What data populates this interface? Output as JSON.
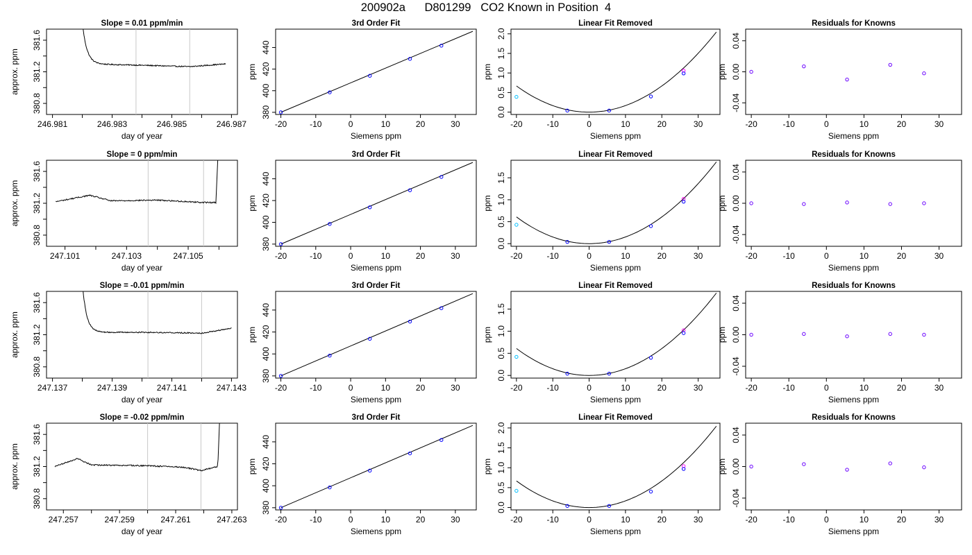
{
  "figure": {
    "title": "200902a      D801299   CO2 Known in Position  4"
  },
  "chart_data": [
    {
      "type": "line",
      "title": "Slope =  0.01  ppm/min",
      "xlabel": "day of year",
      "ylabel": "approx. ppm",
      "xlim": [
        246.9808,
        246.9872
      ],
      "ylim": [
        380.66,
        381.74
      ],
      "xticks": [
        "246.981",
        "246.983",
        "246.985",
        "246.987"
      ],
      "xticks_minor": [
        246.982,
        246.984,
        246.986
      ],
      "yticks": [
        "380.8",
        "381.2",
        "381.6"
      ],
      "ymin_ticks": [
        381.0,
        381.4
      ],
      "vlines": [
        246.9838,
        246.9856
      ],
      "vline_color": "#c8c8c8",
      "line_color": "#000000",
      "series": [
        {
          "x_start": 246.982,
          "x_end": 246.9868,
          "y_start": 381.83,
          "level": 381.3,
          "decay": 0.00015,
          "noise": 0.007,
          "segments": [
            [
              246.9838,
              381.285
            ],
            [
              246.9856,
              381.265
            ],
            [
              246.9868,
              381.3
            ]
          ]
        }
      ]
    },
    {
      "type": "scatter",
      "title": "3rd Order Fit",
      "xlabel": "Siemens ppm",
      "ylabel": "ppm",
      "xlim": [
        -21.5,
        36
      ],
      "ylim": [
        378,
        457
      ],
      "xticks": [
        "-20",
        "-10",
        "0",
        "10",
        "20",
        "30"
      ],
      "yticks": [
        "380",
        "400",
        "420",
        "440"
      ],
      "line": {
        "x": [
          -20,
          35
        ],
        "y": [
          380,
          455
        ]
      },
      "point_color": "#0000ff",
      "points": {
        "x": [
          -20,
          -6,
          5.5,
          17,
          26
        ],
        "y": [
          380,
          398.5,
          413.8,
          429.5,
          441.7
        ]
      }
    },
    {
      "type": "scatter",
      "title": "Linear Fit Removed",
      "xlabel": "Siemens ppm",
      "ylabel": "ppm",
      "xlim": [
        -21.5,
        36
      ],
      "ylim": [
        -0.06,
        2.12
      ],
      "xticks": [
        "-20",
        "-10",
        "0",
        "10",
        "20",
        "30"
      ],
      "yticks": [
        "0.0",
        "0.5",
        "1.0",
        "1.5",
        "2.0"
      ],
      "curve": {
        "coef": 0.00167,
        "x_from": -20,
        "x_to": 35
      },
      "points": {
        "x": [
          -20,
          -6,
          5.5,
          17,
          26
        ],
        "y": [
          0.39,
          0.04,
          0.04,
          0.4,
          1.06
        ]
      },
      "point_colors": [
        "#00bfff",
        "#0000ff",
        "#0000ff",
        "#0000ff",
        "#ff00ff"
      ]
    },
    {
      "type": "scatter",
      "title": "Residuals for Knowns",
      "xlabel": "Siemens ppm",
      "ylabel": "ppm",
      "xlim": [
        -21.5,
        36
      ],
      "ylim": [
        -0.055,
        0.055
      ],
      "xticks": [
        "-20",
        "-10",
        "0",
        "10",
        "20",
        "30"
      ],
      "yticks": [
        "-0.04",
        "0.00",
        "0.04"
      ],
      "points": {
        "x": [
          -20,
          -6,
          5.5,
          17,
          26
        ],
        "y": [
          0.0,
          0.007,
          -0.01,
          0.009,
          -0.002
        ]
      },
      "point_color": "#6a00ff"
    },
    {
      "type": "line",
      "title": "Slope =  0  ppm/min",
      "xlabel": "day of year",
      "ylabel": "approx. ppm",
      "xlim": [
        247.1004,
        247.1066
      ],
      "ylim": [
        380.66,
        381.74
      ],
      "xticks": [
        "247.101",
        "247.103",
        "247.105"
      ],
      "xticks_minor": [
        247.102,
        247.104,
        247.106
      ],
      "yticks": [
        "380.8",
        "381.2",
        "381.6"
      ],
      "ymin_ticks": [
        381.0,
        381.4
      ],
      "vlines": [
        247.1037,
        247.1055
      ],
      "vline_color": "#c8c8c8",
      "line_color": "#000000",
      "series": [
        {
          "x_start": 247.1007,
          "x_end": 247.106,
          "y_start": 381.3,
          "level": 381.22,
          "rise_at": 247.1059,
          "noise": 0.008,
          "segments": [
            [
              247.1018,
              381.3
            ],
            [
              247.1025,
              381.23
            ],
            [
              247.104,
              381.24
            ],
            [
              247.1055,
              381.21
            ]
          ]
        }
      ]
    },
    {
      "type": "scatter",
      "title": "3rd Order Fit",
      "xlabel": "Siemens ppm",
      "ylabel": "ppm",
      "xlim": [
        -21.5,
        36
      ],
      "ylim": [
        378,
        457
      ],
      "xticks": [
        "-20",
        "-10",
        "0",
        "10",
        "20",
        "30"
      ],
      "yticks": [
        "380",
        "400",
        "420",
        "440"
      ],
      "line": {
        "x": [
          -20,
          35
        ],
        "y": [
          380,
          455
        ]
      },
      "point_color": "#0000ff",
      "points": {
        "x": [
          -20,
          -6,
          5.5,
          17,
          26
        ],
        "y": [
          380,
          398.5,
          413.8,
          429.5,
          441.7
        ]
      }
    },
    {
      "type": "scatter",
      "title": "Linear Fit Removed",
      "xlabel": "Siemens ppm",
      "ylabel": "ppm",
      "xlim": [
        -21.5,
        36
      ],
      "ylim": [
        -0.06,
        1.9
      ],
      "xticks": [
        "-20",
        "-10",
        "0",
        "10",
        "20",
        "30"
      ],
      "yticks": [
        "0.0",
        "0.5",
        "1.0",
        "1.5"
      ],
      "curve": {
        "coef": 0.00152,
        "x_from": -20,
        "x_to": 35
      },
      "points": {
        "x": [
          -20,
          -6,
          5.5,
          17,
          26
        ],
        "y": [
          0.43,
          0.04,
          0.04,
          0.4,
          1.02
        ]
      },
      "point_colors": [
        "#00bfff",
        "#0000ff",
        "#0000ff",
        "#0000ff",
        "#ff00ff"
      ]
    },
    {
      "type": "scatter",
      "title": "Residuals for Knowns",
      "xlabel": "Siemens ppm",
      "ylabel": "ppm",
      "xlim": [
        -21.5,
        36
      ],
      "ylim": [
        -0.055,
        0.055
      ],
      "xticks": [
        "-20",
        "-10",
        "0",
        "10",
        "20",
        "30"
      ],
      "yticks": [
        "-0.04",
        "0.00",
        "0.04"
      ],
      "points": {
        "x": [
          -20,
          -6,
          5.5,
          17,
          26
        ],
        "y": [
          0.0,
          -0.001,
          0.001,
          -0.001,
          0.0
        ]
      },
      "point_color": "#6a00ff"
    },
    {
      "type": "line",
      "title": "Slope =  -0.01  ppm/min",
      "xlabel": "day of year",
      "ylabel": "approx. ppm",
      "xlim": [
        247.1368,
        247.1432
      ],
      "ylim": [
        380.66,
        381.74
      ],
      "xticks": [
        "247.137",
        "247.139",
        "247.141",
        "247.143"
      ],
      "xticks_minor": [
        247.138,
        247.14,
        247.142
      ],
      "yticks": [
        "380.8",
        "381.2",
        "381.6"
      ],
      "ymin_ticks": [
        381.0,
        381.4
      ],
      "vlines": [
        247.1402,
        247.142
      ],
      "vline_color": "#c8c8c8",
      "line_color": "#000000",
      "series": [
        {
          "x_start": 247.138,
          "x_end": 247.143,
          "y_start": 381.85,
          "level": 381.23,
          "decay": 0.00014,
          "noise": 0.007,
          "segments": [
            [
              247.1402,
              381.23
            ],
            [
              247.142,
              381.22
            ],
            [
              247.143,
              381.28
            ]
          ]
        }
      ]
    },
    {
      "type": "scatter",
      "title": "3rd Order Fit",
      "xlabel": "Siemens ppm",
      "ylabel": "ppm",
      "xlim": [
        -21.5,
        36
      ],
      "ylim": [
        378,
        457
      ],
      "xticks": [
        "-20",
        "-10",
        "0",
        "10",
        "20",
        "30"
      ],
      "yticks": [
        "380",
        "400",
        "420",
        "440"
      ],
      "line": {
        "x": [
          -20,
          35
        ],
        "y": [
          380,
          455
        ]
      },
      "point_color": "#0000ff",
      "points": {
        "x": [
          -20,
          -6,
          5.5,
          17,
          26
        ],
        "y": [
          380,
          398.5,
          413.8,
          429.5,
          441.7
        ]
      }
    },
    {
      "type": "scatter",
      "title": "Linear Fit Removed",
      "xlabel": "Siemens ppm",
      "ylabel": "ppm",
      "xlim": [
        -21.5,
        36
      ],
      "ylim": [
        -0.06,
        1.9
      ],
      "xticks": [
        "-20",
        "-10",
        "0",
        "10",
        "20",
        "30"
      ],
      "yticks": [
        "0.0",
        "0.5",
        "1.0",
        "1.5"
      ],
      "curve": {
        "coef": 0.00152,
        "x_from": -20,
        "x_to": 35
      },
      "points": {
        "x": [
          -20,
          -6,
          5.5,
          17,
          26
        ],
        "y": [
          0.42,
          0.04,
          0.04,
          0.4,
          1.02
        ]
      },
      "point_colors": [
        "#00bfff",
        "#0000ff",
        "#0000ff",
        "#0000ff",
        "#ff00ff"
      ]
    },
    {
      "type": "scatter",
      "title": "Residuals for Knowns",
      "xlabel": "Siemens ppm",
      "ylabel": "ppm",
      "xlim": [
        -21.5,
        36
      ],
      "ylim": [
        -0.055,
        0.055
      ],
      "xticks": [
        "-20",
        "-10",
        "0",
        "10",
        "20",
        "30"
      ],
      "yticks": [
        "-0.04",
        "0.00",
        "0.04"
      ],
      "points": {
        "x": [
          -20,
          -6,
          5.5,
          17,
          26
        ],
        "y": [
          0.0,
          0.001,
          -0.002,
          0.001,
          0.0
        ]
      },
      "point_color": "#6a00ff"
    },
    {
      "type": "line",
      "title": "Slope =  -0.02  ppm/min",
      "xlabel": "day of year",
      "ylabel": "approx. ppm",
      "xlim": [
        247.2564,
        247.2632
      ],
      "ylim": [
        380.66,
        381.74
      ],
      "xticks": [
        "247.257",
        "247.259",
        "247.261",
        "247.263"
      ],
      "xticks_minor": [
        247.258,
        247.26,
        247.262
      ],
      "yticks": [
        "380.8",
        "381.2",
        "381.6"
      ],
      "ymin_ticks": [
        381.0,
        381.4
      ],
      "vlines": [
        247.26,
        247.2619
      ],
      "vline_color": "#c8c8c8",
      "line_color": "#000000",
      "series": [
        {
          "x_start": 247.2567,
          "x_end": 247.2626,
          "y_start": 381.28,
          "level": 381.2,
          "rise_at": 247.2625,
          "noise": 0.008,
          "segments": [
            [
              247.2575,
              381.3
            ],
            [
              247.258,
              381.22
            ],
            [
              247.26,
              381.21
            ],
            [
              247.2613,
              381.19
            ],
            [
              247.2619,
              381.15
            ],
            [
              247.2625,
              381.2
            ]
          ]
        }
      ]
    },
    {
      "type": "scatter",
      "title": "3rd Order Fit",
      "xlabel": "Siemens ppm",
      "ylabel": "ppm",
      "xlim": [
        -21.5,
        36
      ],
      "ylim": [
        378,
        457
      ],
      "xticks": [
        "-20",
        "-10",
        "0",
        "10",
        "20",
        "30"
      ],
      "yticks": [
        "380",
        "400",
        "420",
        "440"
      ],
      "line": {
        "x": [
          -20,
          35
        ],
        "y": [
          380,
          455
        ]
      },
      "point_color": "#0000ff",
      "points": {
        "x": [
          -20,
          -6,
          5.5,
          17,
          26
        ],
        "y": [
          380,
          398.5,
          413.8,
          429.5,
          441.7
        ]
      }
    },
    {
      "type": "scatter",
      "title": "Linear Fit Removed",
      "xlabel": "Siemens ppm",
      "ylabel": "ppm",
      "xlim": [
        -21.5,
        36
      ],
      "ylim": [
        -0.06,
        2.12
      ],
      "xticks": [
        "-20",
        "-10",
        "0",
        "10",
        "20",
        "30"
      ],
      "yticks": [
        "0.0",
        "0.5",
        "1.0",
        "1.5",
        "2.0"
      ],
      "curve": {
        "coef": 0.00167,
        "x_from": -20,
        "x_to": 35
      },
      "points": {
        "x": [
          -20,
          -6,
          5.5,
          17,
          26
        ],
        "y": [
          0.42,
          0.04,
          0.04,
          0.4,
          1.04
        ]
      },
      "point_colors": [
        "#00bfff",
        "#0000ff",
        "#0000ff",
        "#0000ff",
        "#ff00ff"
      ]
    },
    {
      "type": "scatter",
      "title": "Residuals for Knowns",
      "xlabel": "Siemens ppm",
      "ylabel": "ppm",
      "xlim": [
        -21.5,
        36
      ],
      "ylim": [
        -0.055,
        0.055
      ],
      "xticks": [
        "-20",
        "-10",
        "0",
        "10",
        "20",
        "30"
      ],
      "yticks": [
        "-0.04",
        "0.00",
        "0.04"
      ],
      "points": {
        "x": [
          -20,
          -6,
          5.5,
          17,
          26
        ],
        "y": [
          0.0,
          0.003,
          -0.004,
          0.004,
          -0.001
        ]
      },
      "point_color": "#6a00ff"
    }
  ]
}
